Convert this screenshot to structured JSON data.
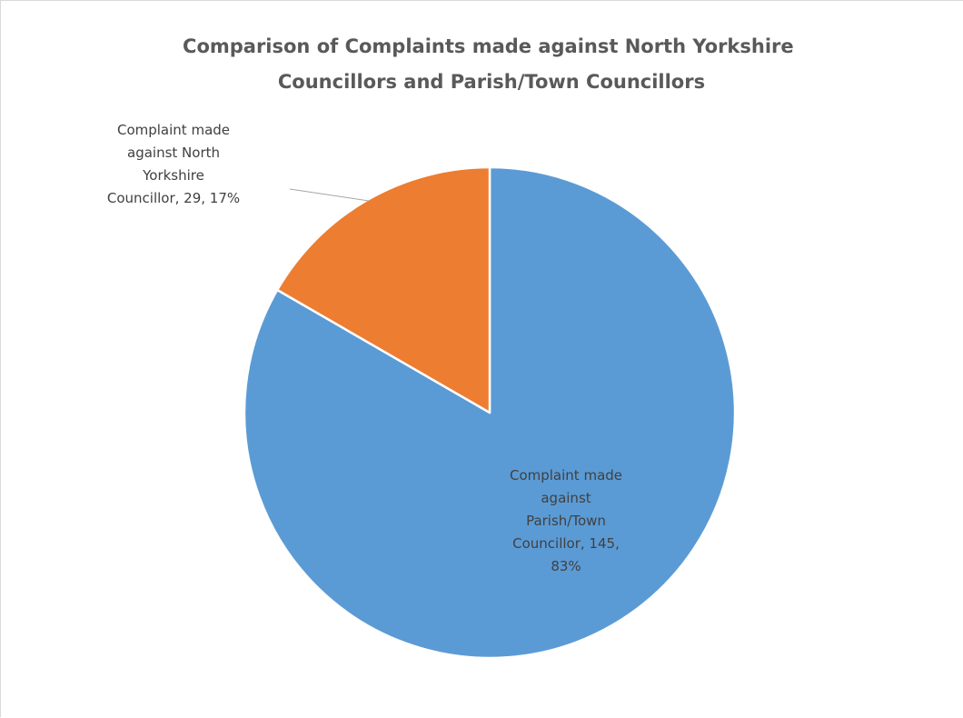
{
  "chart_data": {
    "type": "pie",
    "title": "Comparison of Complaints made against North Yorkshire Councillors and Parish/Town Councillors",
    "title_lines": [
      "Comparison of Complaints made against North Yorkshire",
      "Councillors and Parish/Town Councillors"
    ],
    "legend": "none",
    "slices": [
      {
        "label": "Complaint made against Parish/Town Councillor",
        "value": 145,
        "percent": "83%",
        "color": "#5b9bd5",
        "data_label_lines": [
          "Complaint made",
          "against",
          "Parish/Town",
          "Councillor, 145,",
          "83%"
        ]
      },
      {
        "label": "Complaint made against North Yorkshire Councillor",
        "value": 29,
        "percent": "17%",
        "color": "#ed7d31",
        "data_label_lines": [
          "Complaint made",
          "against North",
          "Yorkshire",
          "Councillor, 29, 17%"
        ]
      }
    ]
  }
}
